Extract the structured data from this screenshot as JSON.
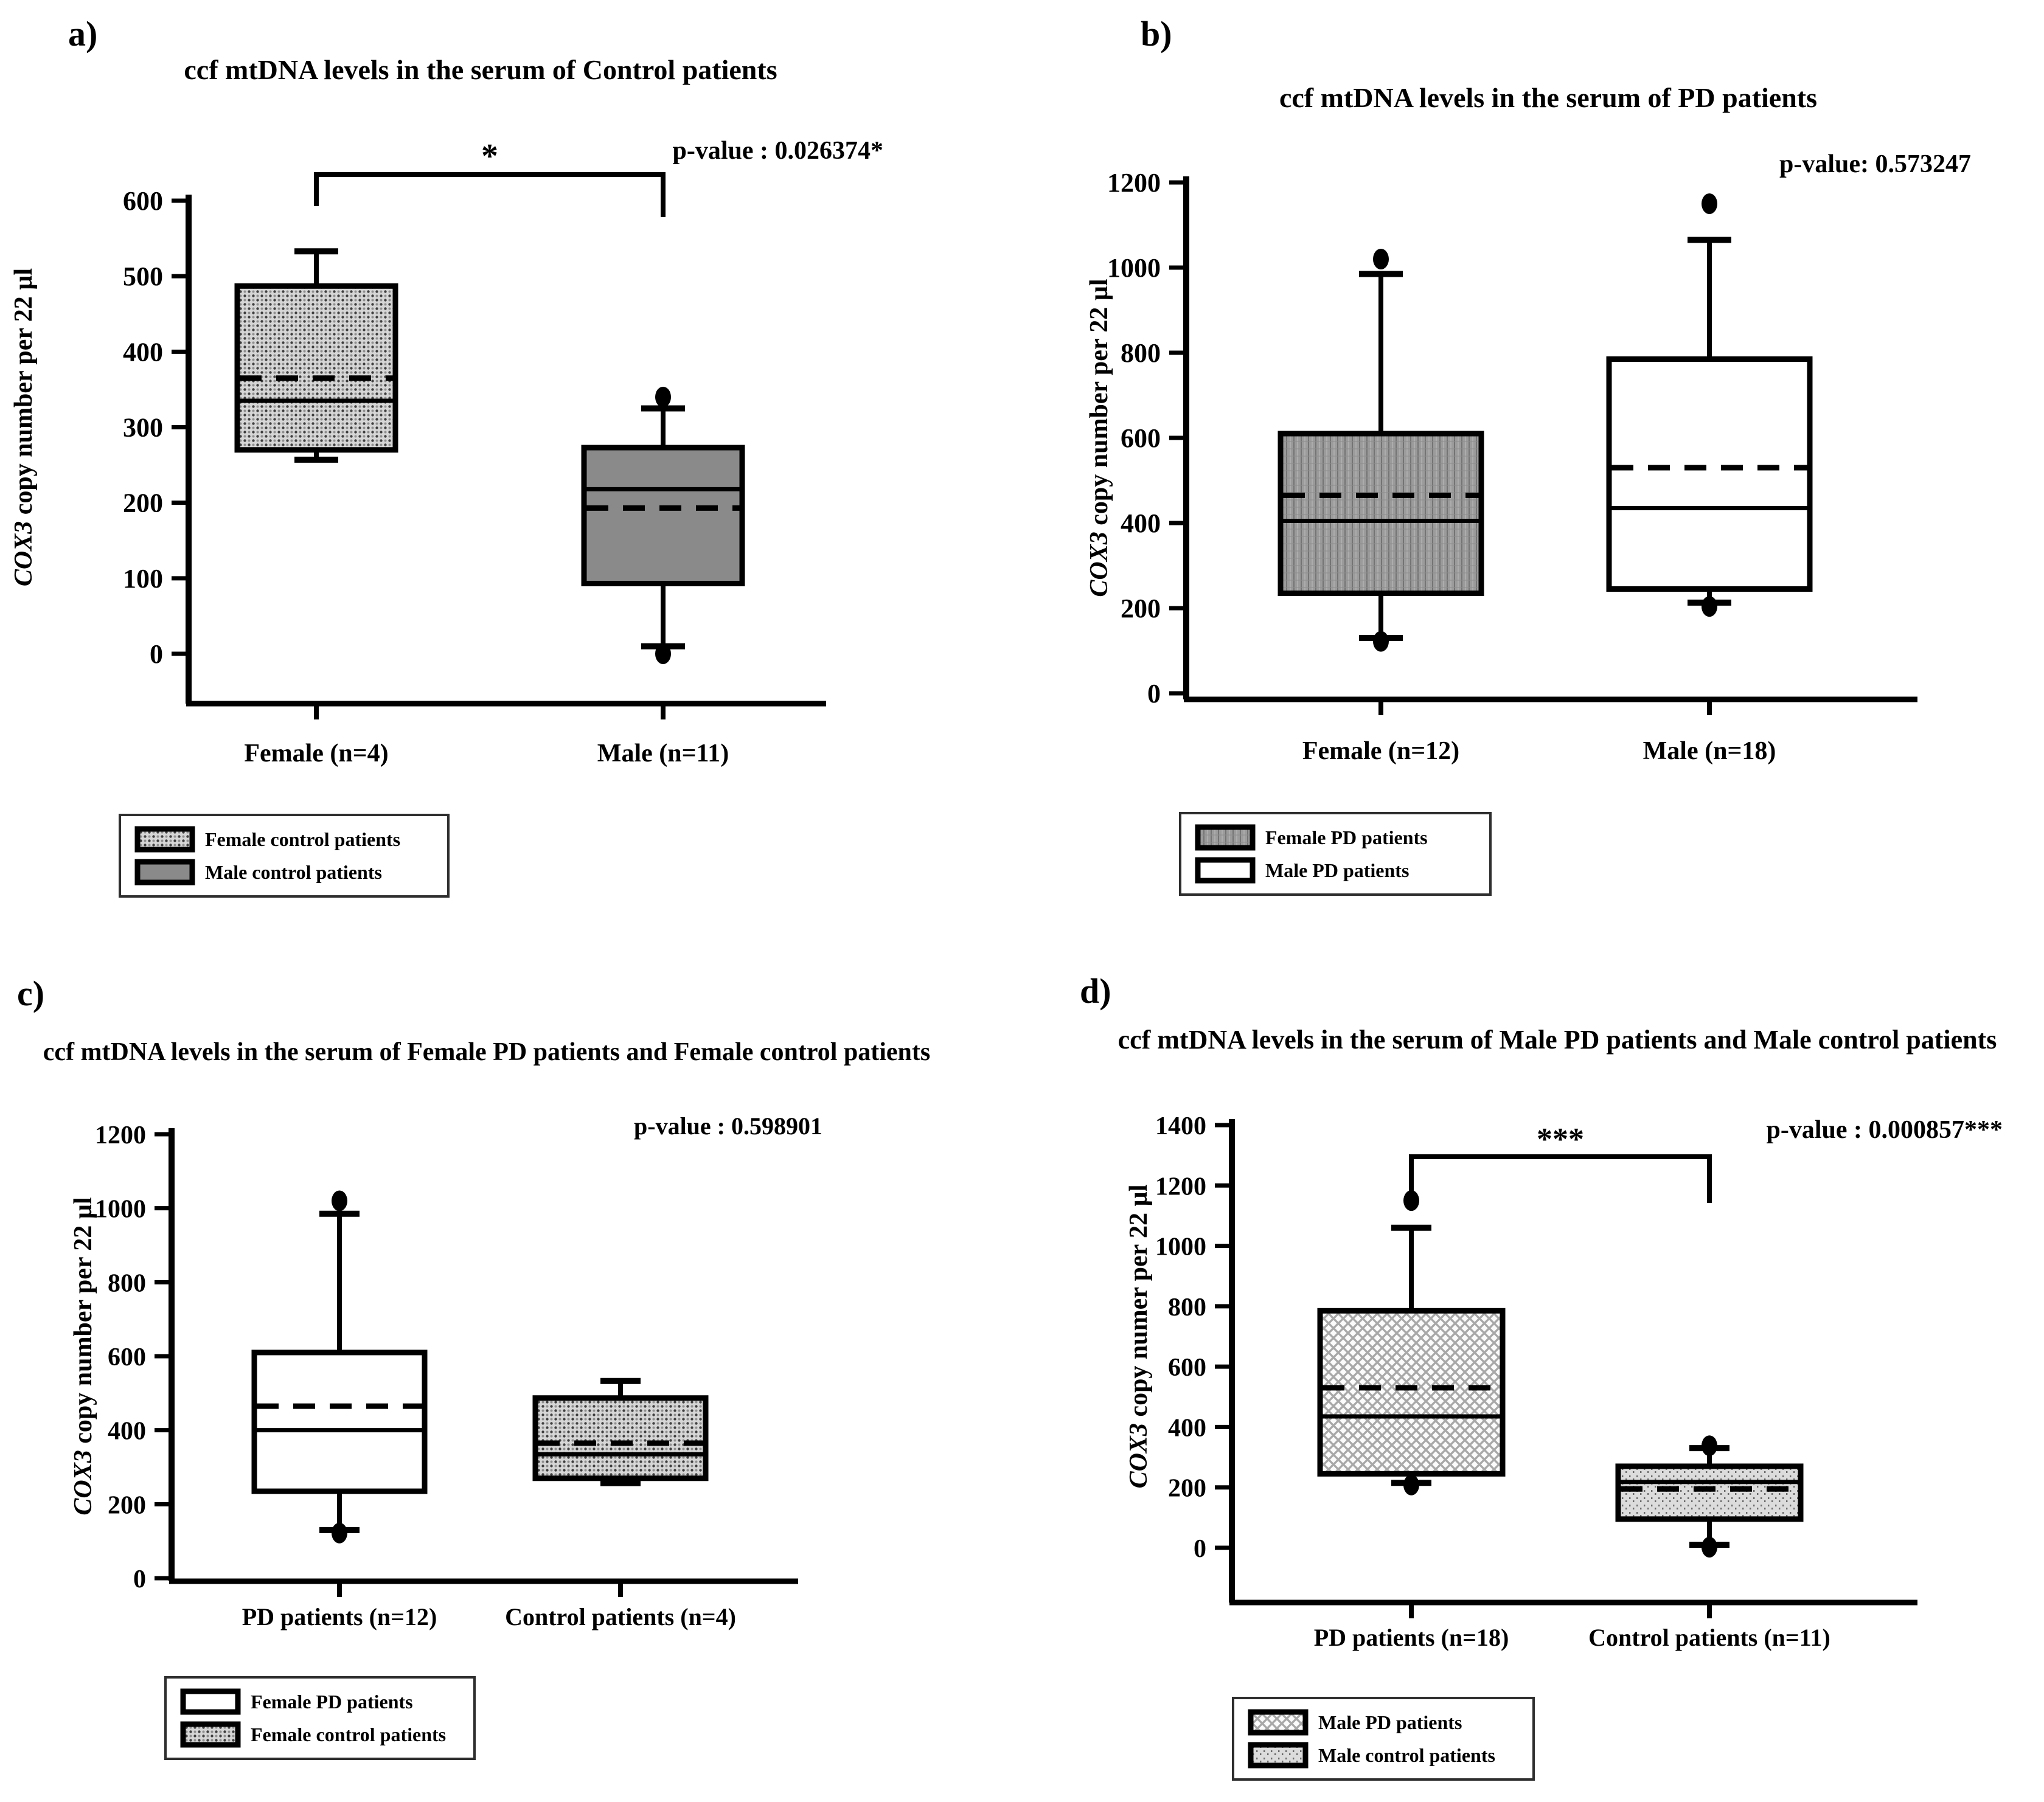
{
  "colors": {
    "ink": "#000000",
    "background": "#ffffff",
    "male_control_gray": "#8a8a8a"
  },
  "chart_data": [
    {
      "id": "a",
      "type": "box",
      "panel_label": "a)",
      "title": "ccf mtDNA levels in the serum of Control patients",
      "p_value": "p-value : 0.026374*",
      "ylabel": "COX3 copy number per 22 µl",
      "ylim": [
        0,
        600
      ],
      "yticks": [
        600,
        500,
        400,
        300,
        200,
        100,
        0
      ],
      "categories": [
        "Female (n=4)",
        "Male (n=11)"
      ],
      "boxes": [
        {
          "category": "Female (n=4)",
          "pattern": "dots-dense",
          "q1": 270,
          "median": 335,
          "mean": 365,
          "q3": 487,
          "whisker_low": 257,
          "whisker_high": 533,
          "outliers": []
        },
        {
          "category": "Male (n=11)",
          "pattern": "solid-gray",
          "q1": 93,
          "median": 218,
          "mean": 193,
          "q3": 273,
          "whisker_low": 10,
          "whisker_high": 325,
          "outliers": [
            340,
            0
          ]
        }
      ],
      "significance": {
        "label": "*",
        "from": 0,
        "to": 1
      },
      "legend": [
        {
          "label": "Female control patients",
          "pattern": "dots-dense"
        },
        {
          "label": "Male control patients",
          "pattern": "solid-gray"
        }
      ]
    },
    {
      "id": "b",
      "type": "box",
      "panel_label": "b)",
      "title": "ccf mtDNA levels in the serum of PD patients",
      "p_value": "p-value: 0.573247",
      "ylabel": "COX3 copy number per 22 µl",
      "ylim": [
        0,
        1200
      ],
      "yticks": [
        1200,
        1000,
        800,
        600,
        400,
        200,
        0
      ],
      "categories": [
        "Female (n=12)",
        "Male (n=18)"
      ],
      "boxes": [
        {
          "category": "Female (n=12)",
          "pattern": "gray-grid",
          "q1": 235,
          "median": 405,
          "mean": 465,
          "q3": 610,
          "whisker_low": 130,
          "whisker_high": 985,
          "outliers": [
            1020,
            122
          ]
        },
        {
          "category": "Male (n=18)",
          "pattern": "white",
          "q1": 245,
          "median": 435,
          "mean": 530,
          "q3": 785,
          "whisker_low": 213,
          "whisker_high": 1065,
          "outliers": [
            1150,
            204
          ]
        }
      ],
      "significance": null,
      "legend": [
        {
          "label": "Female PD patients",
          "pattern": "gray-grid"
        },
        {
          "label": "Male PD patients",
          "pattern": "white"
        }
      ]
    },
    {
      "id": "c",
      "type": "box",
      "panel_label": "c)",
      "title": "ccf mtDNA levels in the serum of Female PD patients and Female control patients",
      "p_value": "p-value : 0.598901",
      "ylabel": "COX3 copy number per 22 µl",
      "ylim": [
        0,
        1200
      ],
      "yticks": [
        1200,
        1000,
        800,
        600,
        400,
        200,
        0
      ],
      "categories": [
        "PD patients (n=12)",
        "Control patients (n=4)"
      ],
      "boxes": [
        {
          "category": "PD patients (n=12)",
          "pattern": "white",
          "q1": 235,
          "median": 400,
          "mean": 465,
          "q3": 610,
          "whisker_low": 130,
          "whisker_high": 985,
          "outliers": [
            1020,
            122
          ]
        },
        {
          "category": "Control patients (n=4)",
          "pattern": "dots-dense",
          "q1": 270,
          "median": 335,
          "mean": 365,
          "q3": 487,
          "whisker_low": 257,
          "whisker_high": 533,
          "outliers": []
        }
      ],
      "significance": null,
      "legend": [
        {
          "label": "Female PD patients",
          "pattern": "white"
        },
        {
          "label": "Female control patients",
          "pattern": "dots-dense"
        }
      ]
    },
    {
      "id": "d",
      "type": "box",
      "panel_label": "d)",
      "title": "ccf mtDNA levels in the serum of Male PD patients and Male control patients",
      "p_value": "p-value : 0.000857***",
      "ylabel": "COX3 copy numer per 22 µl",
      "ylim": [
        0,
        1400
      ],
      "yticks": [
        1400,
        1200,
        1000,
        800,
        600,
        400,
        200,
        0
      ],
      "categories": [
        "PD patients (n=18)",
        "Control patients (n=11)"
      ],
      "boxes": [
        {
          "category": "PD patients (n=18)",
          "pattern": "crosshatch",
          "q1": 245,
          "median": 435,
          "mean": 530,
          "q3": 785,
          "whisker_low": 215,
          "whisker_high": 1060,
          "outliers": [
            1150,
            208
          ]
        },
        {
          "category": "Control patients (n=11)",
          "pattern": "fine-dots",
          "q1": 95,
          "median": 218,
          "mean": 195,
          "q3": 270,
          "whisker_low": 10,
          "whisker_high": 330,
          "outliers": [
            338,
            2
          ]
        }
      ],
      "significance": {
        "label": "***",
        "from": 0,
        "to": 1
      },
      "legend": [
        {
          "label": "Male PD patients",
          "pattern": "crosshatch"
        },
        {
          "label": "Male control patients",
          "pattern": "fine-dots"
        }
      ]
    }
  ]
}
